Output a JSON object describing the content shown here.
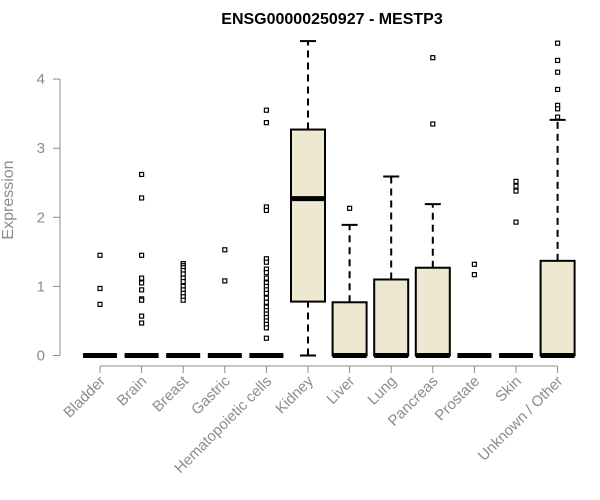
{
  "chart_data": {
    "type": "boxplot",
    "title": "ENSG00000250927 - MESTP3",
    "xlabel": "",
    "ylabel": "Expression",
    "ylim": [
      0,
      4.6
    ],
    "yticks": [
      0,
      1,
      2,
      3,
      4
    ],
    "grid": false,
    "legend": "none",
    "box_fill": "#efe8d0",
    "line_color": "#000000",
    "axis_color": "#8c8c8c",
    "categories": [
      "Bladder",
      "Brain",
      "Breast",
      "Gastric",
      "Hematopoietic cells",
      "Kidney",
      "Liver",
      "Lung",
      "Pancreas",
      "Prostate",
      "Skin",
      "Unknown / Other"
    ],
    "boxes": [
      {
        "q1": 0,
        "median": 0,
        "q3": 0,
        "whisker_low": 0,
        "whisker_high": 0,
        "outliers": [
          1.45,
          0.97,
          0.74
        ]
      },
      {
        "q1": 0,
        "median": 0,
        "q3": 0,
        "whisker_low": 0,
        "whisker_high": 0,
        "outliers": [
          2.62,
          2.28,
          1.45,
          1.12,
          1.05,
          0.95,
          0.82,
          0.8,
          0.57,
          0.47
        ]
      },
      {
        "q1": 0,
        "median": 0,
        "q3": 0,
        "whisker_low": 0,
        "whisker_high": 0,
        "outliers": [
          1.33,
          1.3,
          1.27,
          1.23,
          1.18,
          1.12,
          1.07,
          1.0,
          0.95,
          0.9,
          0.85,
          0.8
        ]
      },
      {
        "q1": 0,
        "median": 0,
        "q3": 0,
        "whisker_low": 0,
        "whisker_high": 0,
        "outliers": [
          1.53,
          1.08
        ]
      },
      {
        "q1": 0,
        "median": 0,
        "q3": 0,
        "whisker_low": 0,
        "whisker_high": 0,
        "outliers": [
          3.55,
          3.37,
          2.15,
          2.1,
          1.4,
          1.35,
          1.25,
          1.2,
          1.12,
          1.05,
          1.0,
          0.95,
          0.9,
          0.83,
          0.77,
          0.7,
          0.65,
          0.6,
          0.55,
          0.5,
          0.45,
          0.4,
          0.25
        ]
      },
      {
        "q1": 0.78,
        "median": 2.27,
        "q3": 3.27,
        "whisker_low": 0,
        "whisker_high": 4.55,
        "outliers": []
      },
      {
        "q1": 0,
        "median": 0,
        "q3": 0.77,
        "whisker_low": 0,
        "whisker_high": 1.89,
        "outliers": [
          2.13
        ]
      },
      {
        "q1": 0,
        "median": 0,
        "q3": 1.1,
        "whisker_low": 0,
        "whisker_high": 2.59,
        "outliers": []
      },
      {
        "q1": 0,
        "median": 0,
        "q3": 1.27,
        "whisker_low": 0,
        "whisker_high": 2.19,
        "outliers": [
          4.31,
          3.35
        ]
      },
      {
        "q1": 0,
        "median": 0,
        "q3": 0,
        "whisker_low": 0,
        "whisker_high": 0,
        "outliers": [
          1.32,
          1.17
        ]
      },
      {
        "q1": 0,
        "median": 0,
        "q3": 0,
        "whisker_low": 0,
        "whisker_high": 0,
        "outliers": [
          2.52,
          2.45,
          2.38,
          1.93
        ]
      },
      {
        "q1": 0,
        "median": 0,
        "q3": 1.37,
        "whisker_low": 0,
        "whisker_high": 3.41,
        "outliers": [
          4.52,
          4.27,
          4.1,
          3.85,
          3.62,
          3.57,
          3.45
        ]
      }
    ]
  }
}
